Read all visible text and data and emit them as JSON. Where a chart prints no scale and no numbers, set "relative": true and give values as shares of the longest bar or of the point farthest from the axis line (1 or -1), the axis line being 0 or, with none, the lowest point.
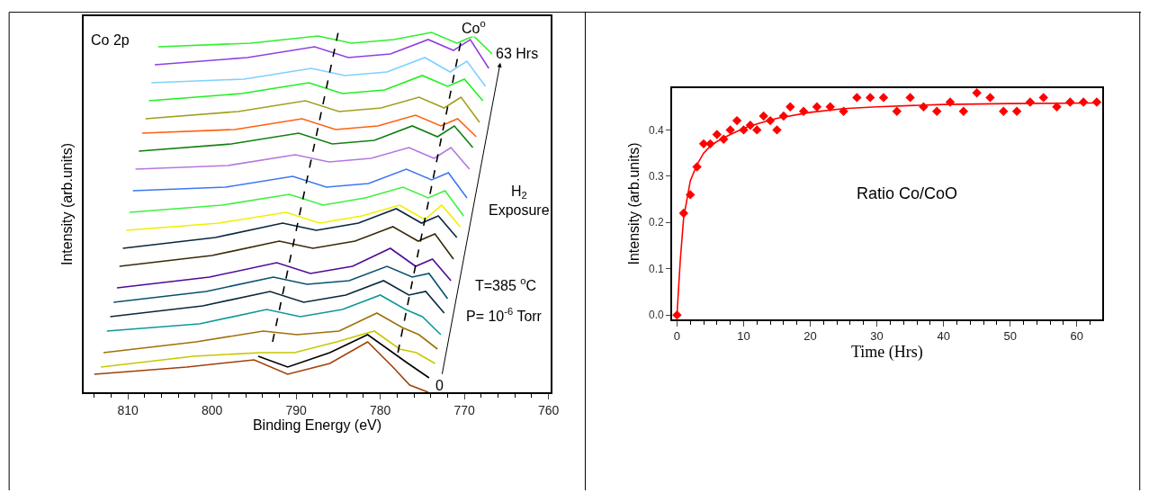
{
  "chart_data": [
    {
      "type": "line",
      "relative": true,
      "tick_labels": "x",
      "xlabel": "Binding Energy (eV)",
      "ylabel": "Intensity (arb.units)",
      "xlim": [
        815.3,
        759.7
      ],
      "xticks": [
        {
          "value": 814,
          "label": null
        },
        {
          "value": 812,
          "label": null
        },
        810,
        {
          "value": 808,
          "label": null
        },
        {
          "value": 806,
          "label": null
        },
        {
          "value": 804,
          "label": null
        },
        {
          "value": 802,
          "label": null
        },
        800,
        {
          "value": 798,
          "label": null
        },
        {
          "value": 796,
          "label": null
        },
        {
          "value": 794,
          "label": null
        },
        {
          "value": 792,
          "label": null
        },
        790,
        {
          "value": 788,
          "label": null
        },
        {
          "value": 786,
          "label": null
        },
        {
          "value": 784,
          "label": null
        },
        {
          "value": 782,
          "label": null
        },
        780,
        {
          "value": 778,
          "label": null
        },
        {
          "value": 776,
          "label": null
        },
        {
          "value": 774,
          "label": null
        },
        {
          "value": 772,
          "label": null
        },
        770,
        {
          "value": 768,
          "label": null
        },
        {
          "value": 766,
          "label": null
        },
        {
          "value": 764,
          "label": null
        },
        {
          "value": 762,
          "label": null
        },
        760
      ],
      "annotations": [
        "Co 2p",
        "Co$^{o}$",
        "H$_{2}$\nExposure",
        "T=385 $^{o}$C",
        "P= 10$^{-6}$ Torr",
        "0",
        "63 Hrs"
      ],
      "series": [
        {
          "color": "#30f030",
          "x": [
            806.4,
            795.4,
            787.4,
            783.4,
            778.4,
            773.9,
            770.9,
            768.9,
            766.7
          ],
          "values": [
            0.96,
            0.97,
            0.99,
            0.97,
            0.98,
            1.0,
            0.97,
            0.99,
            0.94
          ]
        },
        {
          "color": "#9040e0",
          "x": [
            806.8,
            795.8,
            787.8,
            783.8,
            778.8,
            774.3,
            771.3,
            769.3,
            767.1
          ],
          "values": [
            0.91,
            0.93,
            0.96,
            0.93,
            0.94,
            0.98,
            0.95,
            0.98,
            0.9
          ]
        },
        {
          "color": "#80d0ff",
          "x": [
            807.2,
            796.2,
            788.2,
            784.2,
            779.2,
            774.7,
            771.7,
            769.7,
            767.5
          ],
          "values": [
            0.86,
            0.87,
            0.9,
            0.88,
            0.89,
            0.93,
            0.89,
            0.92,
            0.85
          ]
        },
        {
          "color": "#20f020",
          "x": [
            807.5,
            796.5,
            788.5,
            784.5,
            779.5,
            775.0,
            772.0,
            770.0,
            767.8
          ],
          "values": [
            0.81,
            0.83,
            0.86,
            0.83,
            0.84,
            0.88,
            0.85,
            0.87,
            0.81
          ]
        },
        {
          "color": "#a0a020",
          "x": [
            807.9,
            796.9,
            788.9,
            784.9,
            779.9,
            775.4,
            772.4,
            770.4,
            768.2
          ],
          "values": [
            0.76,
            0.78,
            0.81,
            0.78,
            0.79,
            0.82,
            0.79,
            0.82,
            0.75
          ]
        },
        {
          "color": "#ff6010",
          "x": [
            808.3,
            797.3,
            789.3,
            785.3,
            780.3,
            775.8,
            772.8,
            770.8,
            768.6
          ],
          "values": [
            0.72,
            0.73,
            0.76,
            0.73,
            0.74,
            0.77,
            0.74,
            0.76,
            0.71
          ]
        },
        {
          "color": "#108010",
          "x": [
            808.7,
            797.7,
            789.7,
            785.7,
            780.7,
            776.2,
            773.2,
            771.2,
            769.0
          ],
          "values": [
            0.67,
            0.69,
            0.72,
            0.69,
            0.7,
            0.74,
            0.71,
            0.74,
            0.68
          ]
        },
        {
          "color": "#b478e0",
          "x": [
            809.1,
            798.1,
            790.1,
            786.1,
            781.1,
            776.6,
            773.6,
            771.6,
            769.4
          ],
          "values": [
            0.62,
            0.63,
            0.66,
            0.64,
            0.65,
            0.68,
            0.65,
            0.68,
            0.62
          ]
        },
        {
          "color": "#3c78f0",
          "x": [
            809.4,
            798.4,
            790.4,
            786.4,
            781.4,
            776.9,
            773.9,
            771.9,
            769.7
          ],
          "values": [
            0.56,
            0.57,
            0.6,
            0.57,
            0.58,
            0.62,
            0.59,
            0.61,
            0.54
          ]
        },
        {
          "color": "#40f040",
          "x": [
            809.8,
            798.8,
            790.8,
            786.8,
            781.8,
            777.3,
            774.3,
            772.3,
            770.1
          ],
          "values": [
            0.5,
            0.52,
            0.55,
            0.52,
            0.54,
            0.57,
            0.54,
            0.56,
            0.49
          ]
        },
        {
          "color": "#f0f000",
          "x": [
            810.2,
            799.2,
            791.2,
            787.2,
            782.2,
            777.7,
            774.7,
            772.7,
            770.5
          ],
          "values": [
            0.45,
            0.47,
            0.5,
            0.47,
            0.49,
            0.52,
            0.48,
            0.52,
            0.46
          ]
        },
        {
          "color": "#082840",
          "x": [
            810.6,
            799.6,
            791.6,
            787.6,
            782.6,
            778.1,
            775.1,
            773.1,
            770.9
          ],
          "values": [
            0.4,
            0.43,
            0.47,
            0.45,
            0.47,
            0.51,
            0.47,
            0.49,
            0.43
          ]
        },
        {
          "color": "#3c2808",
          "x": [
            811.0,
            800.0,
            792.0,
            788.0,
            783.0,
            778.5,
            775.5,
            773.5,
            771.3
          ],
          "values": [
            0.35,
            0.38,
            0.42,
            0.4,
            0.42,
            0.46,
            0.42,
            0.44,
            0.37
          ]
        },
        {
          "color": "#500a98",
          "x": [
            811.3,
            800.3,
            792.3,
            788.3,
            783.3,
            778.8,
            775.8,
            773.8,
            771.6
          ],
          "values": [
            0.29,
            0.32,
            0.36,
            0.33,
            0.35,
            0.4,
            0.35,
            0.37,
            0.31
          ]
        },
        {
          "color": "#0a5070",
          "x": [
            811.7,
            800.7,
            792.7,
            788.7,
            783.7,
            779.2,
            776.2,
            774.2,
            772.0
          ],
          "values": [
            0.25,
            0.28,
            0.32,
            0.3,
            0.31,
            0.35,
            0.32,
            0.33,
            0.26
          ]
        },
        {
          "color": "#08283c",
          "x": [
            812.1,
            801.1,
            793.1,
            789.1,
            784.1,
            779.6,
            776.6,
            774.6,
            772.4
          ],
          "values": [
            0.21,
            0.24,
            0.28,
            0.25,
            0.27,
            0.31,
            0.27,
            0.28,
            0.22
          ]
        },
        {
          "color": "#109898",
          "x": [
            812.5,
            801.5,
            793.5,
            789.5,
            784.5,
            780.0,
            777.0,
            775.0,
            772.8
          ],
          "values": [
            0.17,
            0.19,
            0.23,
            0.21,
            0.23,
            0.27,
            0.23,
            0.21,
            0.16
          ]
        },
        {
          "color": "#a0700a",
          "x": [
            812.9,
            801.9,
            793.9,
            789.9,
            784.9,
            780.4,
            777.4,
            775.4,
            773.2
          ],
          "values": [
            0.11,
            0.14,
            0.17,
            0.16,
            0.17,
            0.22,
            0.18,
            0.16,
            0.12
          ]
        },
        {
          "color": "#c8c800",
          "x": [
            813.2,
            802.2,
            794.2,
            790.2,
            785.2,
            780.7,
            777.7,
            775.7,
            773.5
          ],
          "values": [
            0.07,
            0.1,
            0.11,
            0.11,
            0.14,
            0.17,
            0.12,
            0.11,
            0.08
          ]
        },
        {
          "color": "#000000",
          "x": [
            794.5,
            791.0,
            786.0,
            781.5,
            778.5,
            776.7,
            774.2
          ],
          "values": [
            0.1,
            0.07,
            0.11,
            0.16,
            0.11,
            0.08,
            0.04
          ]
        },
        {
          "color": "#a0400a",
          "x": [
            814.0,
            803.0,
            795.0,
            791.0,
            786.0,
            781.5,
            778.5,
            776.5,
            774.3
          ],
          "values": [
            0.05,
            0.07,
            0.09,
            0.05,
            0.08,
            0.14,
            0.07,
            0.02,
            0.0
          ]
        },
        {
          "color": "#000000",
          "line_style": "dashed",
          "x": [
            792.8,
            785.0
          ],
          "values": [
            0.14,
            1.0
          ]
        },
        {
          "color": "#000000",
          "line_style": "dashed",
          "x": [
            777.9,
            770.2
          ],
          "values": [
            0.11,
            1.0
          ]
        }
      ]
    },
    {
      "type": "scatter",
      "xlabel": "Time (Hrs)",
      "ylabel": "Intensity (arb.units)",
      "xlim": [
        -0.75,
        63.8
      ],
      "ylim": [
        -0.009,
        0.49
      ],
      "xticks": [
        0,
        {
          "value": 2,
          "label": null
        },
        {
          "value": 4,
          "label": null
        },
        {
          "value": 6,
          "label": null
        },
        {
          "value": 8,
          "label": null
        },
        10,
        {
          "value": 12,
          "label": null
        },
        {
          "value": 14,
          "label": null
        },
        {
          "value": 16,
          "label": null
        },
        {
          "value": 18,
          "label": null
        },
        20,
        {
          "value": 22,
          "label": null
        },
        {
          "value": 24,
          "label": null
        },
        {
          "value": 26,
          "label": null
        },
        {
          "value": 28,
          "label": null
        },
        30,
        {
          "value": 32,
          "label": null
        },
        {
          "value": 34,
          "label": null
        },
        {
          "value": 36,
          "label": null
        },
        {
          "value": 38,
          "label": null
        },
        40,
        {
          "value": 42,
          "label": null
        },
        {
          "value": 44,
          "label": null
        },
        {
          "value": 46,
          "label": null
        },
        {
          "value": 48,
          "label": null
        },
        50,
        {
          "value": 52,
          "label": null
        },
        {
          "value": 54,
          "label": null
        },
        {
          "value": 56,
          "label": null
        },
        {
          "value": 58,
          "label": null
        },
        60,
        {
          "value": 62,
          "label": null
        }
      ],
      "yticks": [
        {
          "value": 0,
          "label": "0.0"
        },
        0.1,
        0.2,
        0.3,
        0.4
      ],
      "annotations": [
        "Ratio Co/CoO"
      ],
      "series": [
        {
          "type": "line",
          "color": "#ff0000",
          "x": [
            0,
            0.5,
            1,
            1.5,
            2,
            3,
            4,
            5,
            6,
            8,
            10,
            12,
            15,
            20,
            25,
            30,
            40,
            50,
            63
          ],
          "values": [
            0,
            0.12,
            0.21,
            0.25,
            0.29,
            0.325,
            0.35,
            0.365,
            0.375,
            0.39,
            0.403,
            0.413,
            0.425,
            0.438,
            0.446,
            0.45,
            0.455,
            0.457,
            0.458
          ]
        },
        {
          "type": "scatter",
          "marker": "diamond",
          "color": "#ff0000",
          "x": [
            0,
            1,
            2,
            3,
            4,
            5,
            6,
            7,
            8,
            9,
            10,
            11,
            12,
            13,
            14,
            15,
            16,
            17,
            19,
            21,
            23,
            25,
            27,
            29,
            31,
            33,
            35,
            37,
            39,
            41,
            43,
            45,
            47,
            49,
            51,
            53,
            55,
            57,
            59,
            61,
            63
          ],
          "values": [
            0,
            0.22,
            0.26,
            0.32,
            0.37,
            0.37,
            0.39,
            0.38,
            0.4,
            0.42,
            0.4,
            0.41,
            0.4,
            0.43,
            0.42,
            0.4,
            0.43,
            0.45,
            0.44,
            0.45,
            0.45,
            0.44,
            0.47,
            0.47,
            0.47,
            0.44,
            0.47,
            0.45,
            0.44,
            0.46,
            0.44,
            0.48,
            0.47,
            0.44,
            0.44,
            0.46,
            0.47,
            0.45,
            0.46,
            0.46,
            0.46
          ]
        }
      ]
    }
  ]
}
